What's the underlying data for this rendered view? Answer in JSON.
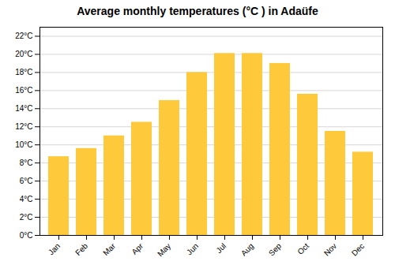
{
  "chart_data": {
    "type": "bar",
    "title": "Average monthly temperatures (°C ) in Adaüfe",
    "categories": [
      "Jan",
      "Feb",
      "Mar",
      "Apr",
      "May",
      "Jun",
      "Jul",
      "Aug",
      "Sep",
      "Oct",
      "Nov",
      "Dec"
    ],
    "values": [
      8.7,
      9.6,
      11.0,
      12.5,
      14.9,
      18.0,
      20.1,
      20.1,
      19.0,
      15.6,
      11.5,
      9.2
    ],
    "color": "#FFC93C",
    "ylim": [
      0,
      23
    ],
    "yticks": [
      {
        "value": 0,
        "label": "0°C"
      },
      {
        "value": 2,
        "label": "2°C"
      },
      {
        "value": 4,
        "label": "4°C"
      },
      {
        "value": 6,
        "label": "6°C"
      },
      {
        "value": 8,
        "label": "8°C"
      },
      {
        "value": 10,
        "label": "10°C"
      },
      {
        "value": 12,
        "label": "12°C"
      },
      {
        "value": 14,
        "label": "14°C"
      },
      {
        "value": 16,
        "label": "16°C"
      },
      {
        "value": 18,
        "label": "18°C"
      },
      {
        "value": 20,
        "label": "20°C"
      },
      {
        "value": 22,
        "label": "22°C"
      }
    ],
    "grid": true
  }
}
